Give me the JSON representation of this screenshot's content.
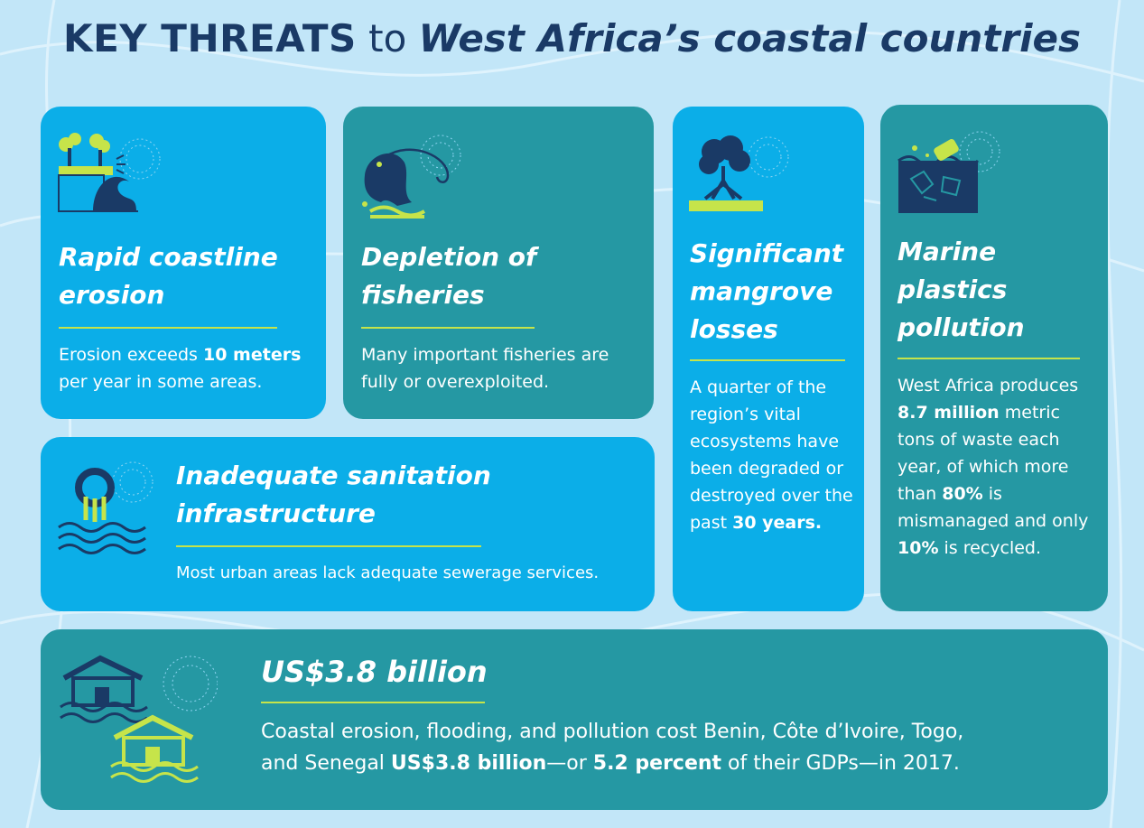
{
  "title": {
    "part1": "KEY THREATS",
    "part2": "to",
    "part3": "West Africa’s coastal countries"
  },
  "colors": {
    "background": "#c2e6f8",
    "card_blue": "#0baee8",
    "card_teal": "#2598a3",
    "title_navy": "#1a3a66",
    "accent_lime": "#c6e44a"
  },
  "cards": {
    "erosion": {
      "icon": "coastline-erosion-icon",
      "heading": "Rapid coastline erosion",
      "desc_pre": "Erosion exceeds ",
      "desc_bold": "10 meters",
      "desc_post": " per year in some areas."
    },
    "fisheries": {
      "icon": "fish-hook-icon",
      "heading": "Depletion of fisheries",
      "desc": "Many important fisheries are fully or overexploited."
    },
    "mangrove": {
      "icon": "mangrove-tree-icon",
      "heading": "Significant mangrove losses",
      "desc_pre": "A quarter of the region’s vital ecosystems have been degraded or destroyed over the past ",
      "desc_bold": "30 years."
    },
    "plastics": {
      "icon": "plastic-bottle-sea-icon",
      "heading": "Marine plastics pollution",
      "desc_1": "West Africa produces ",
      "desc_bold_1": "8.7 million",
      "desc_2": " metric tons of waste each year, of which more than ",
      "desc_bold_2": "80%",
      "desc_3": " is mismanaged and only ",
      "desc_bold_3": "10%",
      "desc_4": " is recycled."
    },
    "sanitation": {
      "icon": "sewage-pipe-icon",
      "heading": "Inadequate sanitation infrastructure",
      "desc": "Most urban areas lack adequate sewerage services."
    },
    "cost": {
      "icon": "flooded-houses-icon",
      "heading": "US$3.8 billion",
      "desc_1": "Coastal erosion, flooding, and pollution cost Benin, Côte d’Ivoire, Togo,",
      "desc_2": "and Senegal ",
      "desc_bold_1": "US$3.8 billion",
      "desc_3": "—or ",
      "desc_bold_2": "5.2 percent",
      "desc_4": " of their GDPs—in 2017."
    }
  }
}
